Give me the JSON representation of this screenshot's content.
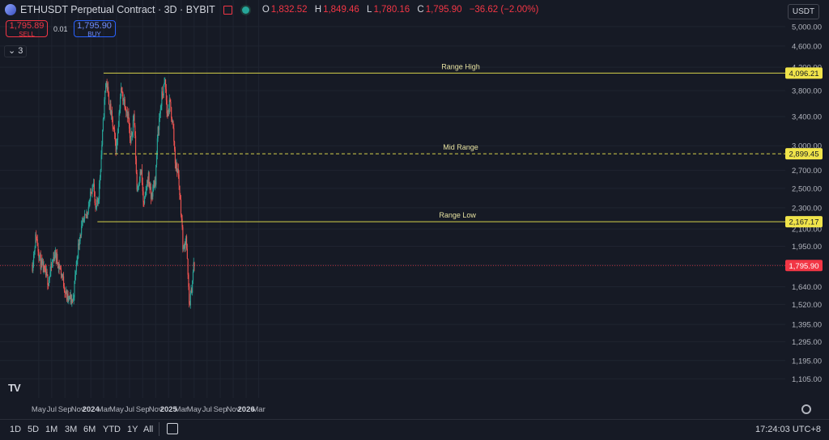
{
  "header": {
    "title": "ETHUSDT Perpetual Contract · 3D · BYBIT",
    "ohlc": {
      "o_label": "O",
      "o": "1,832.52",
      "h_label": "H",
      "h": "1,849.46",
      "l_label": "L",
      "l": "1,780.16",
      "c_label": "C",
      "c": "1,795.90",
      "change": "−36.62 (−2.00%)"
    }
  },
  "trade": {
    "sell_price": "1,795.89",
    "sell_label": "SELL",
    "spread": "0.01",
    "buy_price": "1,795.90",
    "buy_label": "BUY"
  },
  "indicator_toggle": {
    "count": "3"
  },
  "currency_button": "USDT",
  "toolbar": {
    "ranges": [
      "1D",
      "5D",
      "1M",
      "3M",
      "6M",
      "YTD",
      "1Y",
      "All"
    ],
    "clock": "17:24:03 UTC+8"
  },
  "colors": {
    "background": "#161a25",
    "up": "#26a69a",
    "down": "#ef5350",
    "level": "#d7d24a",
    "last_price": "#f23645",
    "grid": "#1f2430"
  },
  "chart_data": {
    "type": "candlestick",
    "y_scale": "log",
    "ylim": [
      1080,
      5050
    ],
    "y_ticks": [
      "5,000.00",
      "4,600.00",
      "4,200.00",
      "3,800.00",
      "3,400.00",
      "3,000.00",
      "2,700.00",
      "2,500.00",
      "2,300.00",
      "2,100.00",
      "1,950.00",
      "1,800.00",
      "1,640.00",
      "1,520.00",
      "1,395.00",
      "1,295.00",
      "1,195.00",
      "1,105.00"
    ],
    "x_ticks": [
      "May",
      "Jul",
      "Sep",
      "Nov",
      "2024",
      "Mar",
      "May",
      "Jul",
      "Sep",
      "Nov",
      "2025",
      "Mar",
      "May",
      "Jul",
      "Sep",
      "Nov",
      "2026",
      "Mar"
    ],
    "x_ticks_bold": [
      "2024",
      "2025",
      "2026"
    ],
    "x_range": [
      "2023-04",
      "2026-03"
    ],
    "levels": [
      {
        "name": "Range High",
        "label": "4,096.21",
        "value": 4096.21,
        "style": "solid",
        "from": "2024-03"
      },
      {
        "name": "Mid Range",
        "label": "2,899.45",
        "value": 2899.45,
        "style": "dashed",
        "from": "2024-03"
      },
      {
        "name": "Range Low",
        "label": "2,167.17",
        "value": 2167.17,
        "style": "solid",
        "from": "2024-02"
      }
    ],
    "last_price": {
      "label": "1,795.90",
      "value": 1795.9
    },
    "price_path": [
      {
        "date": "2023-04-01",
        "price": 1800
      },
      {
        "date": "2023-04-18",
        "price": 2050
      },
      {
        "date": "2023-05-10",
        "price": 1810
      },
      {
        "date": "2023-06-15",
        "price": 1680
      },
      {
        "date": "2023-07-15",
        "price": 1900
      },
      {
        "date": "2023-08-17",
        "price": 1730
      },
      {
        "date": "2023-09-11",
        "price": 1560
      },
      {
        "date": "2023-10-10",
        "price": 1550
      },
      {
        "date": "2023-10-24",
        "price": 1800
      },
      {
        "date": "2023-11-10",
        "price": 2050
      },
      {
        "date": "2023-12-10",
        "price": 2230
      },
      {
        "date": "2023-12-28",
        "price": 2380
      },
      {
        "date": "2024-01-12",
        "price": 2600
      },
      {
        "date": "2024-01-23",
        "price": 2250
      },
      {
        "date": "2024-02-08",
        "price": 2450
      },
      {
        "date": "2024-02-28",
        "price": 3300
      },
      {
        "date": "2024-03-12",
        "price": 4000
      },
      {
        "date": "2024-03-28",
        "price": 3600
      },
      {
        "date": "2024-04-12",
        "price": 3300
      },
      {
        "date": "2024-04-30",
        "price": 2950
      },
      {
        "date": "2024-05-21",
        "price": 3800
      },
      {
        "date": "2024-06-10",
        "price": 3600
      },
      {
        "date": "2024-06-25",
        "price": 3400
      },
      {
        "date": "2024-07-05",
        "price": 3000
      },
      {
        "date": "2024-07-22",
        "price": 3450
      },
      {
        "date": "2024-08-05",
        "price": 2500
      },
      {
        "date": "2024-08-25",
        "price": 2700
      },
      {
        "date": "2024-09-06",
        "price": 2300
      },
      {
        "date": "2024-09-27",
        "price": 2650
      },
      {
        "date": "2024-10-10",
        "price": 2400
      },
      {
        "date": "2024-10-31",
        "price": 2600
      },
      {
        "date": "2024-11-12",
        "price": 3200
      },
      {
        "date": "2024-11-30",
        "price": 3700
      },
      {
        "date": "2024-12-16",
        "price": 3950
      },
      {
        "date": "2024-12-25",
        "price": 3400
      },
      {
        "date": "2025-01-07",
        "price": 3600
      },
      {
        "date": "2025-01-22",
        "price": 3250
      },
      {
        "date": "2025-02-03",
        "price": 2750
      },
      {
        "date": "2025-02-14",
        "price": 2700
      },
      {
        "date": "2025-03-03",
        "price": 2200
      },
      {
        "date": "2025-03-11",
        "price": 1900
      },
      {
        "date": "2025-03-24",
        "price": 2050
      },
      {
        "date": "2025-04-08",
        "price": 1520
      },
      {
        "date": "2025-04-18",
        "price": 1600
      },
      {
        "date": "2025-04-29",
        "price": 1800
      },
      {
        "date": "2025-05-03",
        "price": 1795.9
      }
    ]
  }
}
